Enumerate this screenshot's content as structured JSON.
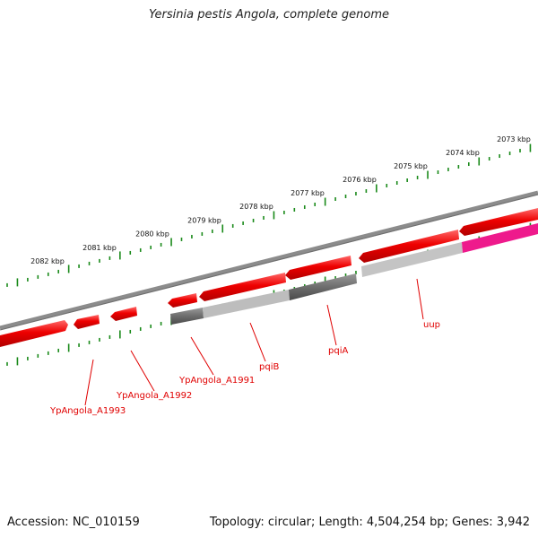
{
  "title": "Yersinia pestis Angola, complete genome",
  "footer": {
    "accession": "Accession: NC_010159",
    "summary": "Topology: circular; Length: 4,504,254 bp; Genes: 3,942"
  },
  "ticks": [
    "2073 kbp",
    "2074 kbp",
    "2075 kbp",
    "2076 kbp",
    "2077 kbp",
    "2078 kbp",
    "2079 kbp",
    "2080 kbp",
    "2081 kbp",
    "2082 kbp"
  ],
  "genes": [
    "uup",
    "pqiA",
    "pqiB",
    "YpAngola_A1991",
    "YpAngola_A1992",
    "YpAngola_A1993"
  ],
  "colors": {
    "backbone": "#7a7a7a",
    "gene_red": "#ee0000",
    "tick_green": "#1a8a1a",
    "label_red": "#e00000",
    "cog_light": "#bdbdbd",
    "cog_dark": "#5e5e5e",
    "cog_pink": "#ee1a8c"
  }
}
